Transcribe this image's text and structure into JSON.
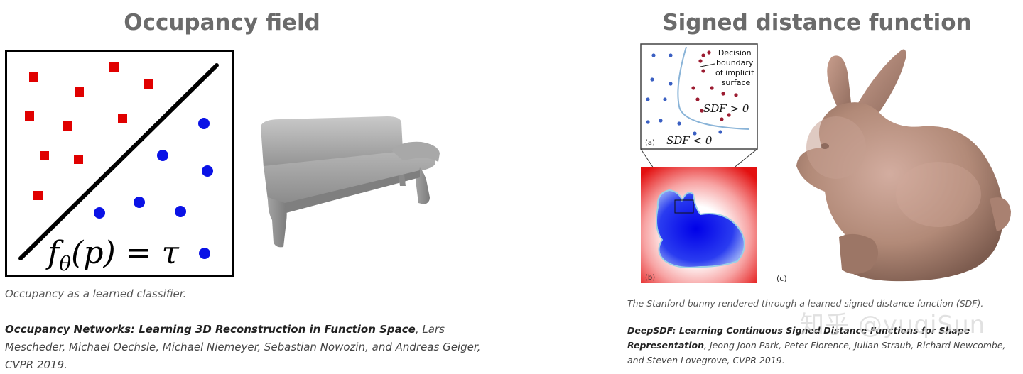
{
  "left": {
    "title": "Occupancy field",
    "equation": "fθ(p) = τ",
    "equation_parts": {
      "f": "f",
      "sub": "θ",
      "rest": "(p) = τ"
    },
    "caption": "Occupancy as a learned classifier.",
    "ref_title": "Occupancy Networks: Learning 3D Reconstruction in Function Space",
    "ref_authors": ", Lars Mescheder, Michael Oechsle, Michael Niemeyer, Sebastian Nowozin, and Andreas Geiger, CVPR 2019."
  },
  "right": {
    "title": "Signed distance function",
    "inset": {
      "legend_text": "Decision boundary of implicit surface",
      "legend_lines": [
        "Decision",
        "boundary",
        "of implicit",
        "surface"
      ],
      "sdf_pos": "SDF > 0",
      "sdf_neg": "SDF < 0",
      "label_a": "(a)",
      "label_b": "(b)",
      "label_c": "(c)"
    },
    "caption": "The Stanford bunny rendered through a learned signed distance function (SDF).",
    "ref_title": "DeepSDF: Learning Continuous Signed Distance Functions for Shape Representation",
    "ref_authors": ", Jeong Joon Park, Peter Florence, Julian Straub, Richard Newcombe, and Steven Lovegrove, CVPR 2019."
  },
  "watermark": "知乎 @yuqiSun",
  "colors": {
    "title": "#6b6b6b",
    "red_points": "#e00000",
    "blue_points": "#0a12e6",
    "bunny": "#b28a78",
    "bench": "#9a9a9a"
  }
}
